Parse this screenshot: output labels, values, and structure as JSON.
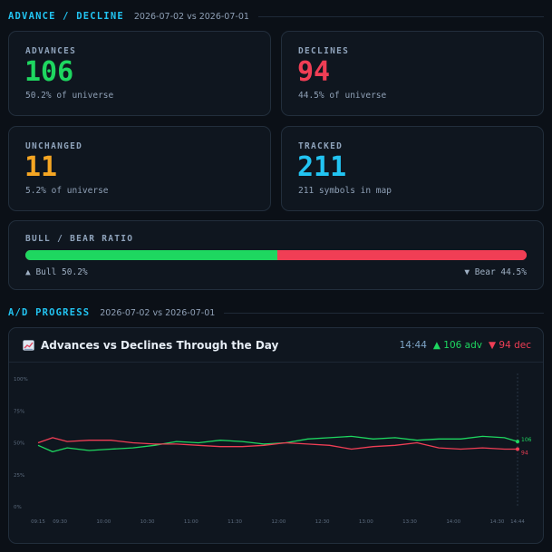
{
  "section1": {
    "title": "ADVANCE / DECLINE",
    "subtitle": "2026-07-02 vs 2026-07-01"
  },
  "stats": {
    "advances": {
      "label": "ADVANCES",
      "value": "106",
      "sub": "50.2% of universe",
      "color": "#1ed760"
    },
    "declines": {
      "label": "DECLINES",
      "value": "94",
      "sub": "44.5% of universe",
      "color": "#f03e55"
    },
    "unchanged": {
      "label": "UNCHANGED",
      "value": "11",
      "sub": "5.2% of universe",
      "color": "#f5a623"
    },
    "tracked": {
      "label": "TRACKED",
      "value": "211",
      "sub": "211 symbols in map",
      "color": "#22c4f2"
    }
  },
  "ratio": {
    "label": "BULL / BEAR RATIO",
    "bull_label": "▲ Bull 50.2%",
    "bear_label": "▼ Bear 44.5%",
    "bull_fraction": 0.502,
    "bear_fraction": 0.445
  },
  "section2": {
    "title": "A/D PROGRESS",
    "subtitle": "2026-07-02 vs 2026-07-01"
  },
  "chart_card": {
    "icon": "chart-line-icon",
    "title": "Advances vs Declines Through the Day",
    "time": "14:44",
    "adv_summary": "▲ 106 adv",
    "dec_summary": "▼ 94 dec"
  },
  "chart_data": {
    "type": "line",
    "y_ticks": [
      "100%",
      "75%",
      "50%",
      "25%",
      "0%"
    ],
    "ylim": [
      0,
      100
    ],
    "x_ticks": [
      "09:15",
      "09:30",
      "10:00",
      "10:30",
      "11:00",
      "11:30",
      "12:00",
      "12:30",
      "13:00",
      "13:30",
      "14:00",
      "14:30",
      "14:44"
    ],
    "x_tick_minutes": [
      555,
      570,
      600,
      630,
      660,
      690,
      720,
      750,
      780,
      810,
      840,
      870,
      884
    ],
    "xlim_minutes": [
      555,
      884
    ],
    "grid": false,
    "series": [
      {
        "color": "#1ed760",
        "end_label": "106",
        "x_minutes": [
          555,
          565,
          575,
          590,
          605,
          620,
          635,
          650,
          665,
          680,
          695,
          710,
          725,
          740,
          755,
          770,
          785,
          800,
          815,
          830,
          845,
          860,
          875,
          884
        ],
        "values": [
          48,
          43,
          46,
          44,
          45,
          46,
          48,
          51,
          50,
          52,
          51,
          49,
          50,
          53,
          54,
          55,
          53,
          54,
          52,
          53,
          53,
          55,
          54,
          51
        ]
      },
      {
        "color": "#f03e55",
        "end_label": "94",
        "x_minutes": [
          555,
          565,
          575,
          590,
          605,
          620,
          635,
          650,
          665,
          680,
          695,
          710,
          725,
          740,
          755,
          770,
          785,
          800,
          815,
          830,
          845,
          860,
          875,
          884
        ],
        "values": [
          50,
          54,
          51,
          52,
          52,
          50,
          49,
          49,
          48,
          47,
          47,
          48,
          50,
          49,
          48,
          45,
          47,
          48,
          50,
          46,
          45,
          46,
          45,
          45
        ]
      }
    ]
  }
}
